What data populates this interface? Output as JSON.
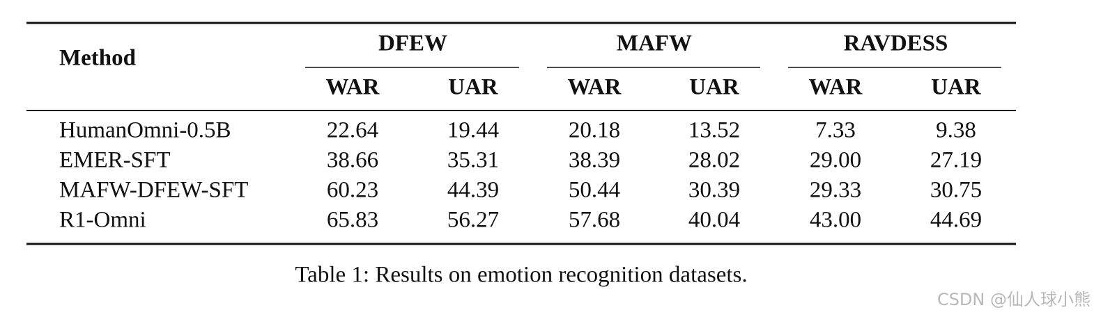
{
  "table": {
    "header": {
      "method": "Method",
      "groups": [
        "DFEW",
        "MAFW",
        "RAVDESS"
      ],
      "metrics": [
        "WAR",
        "UAR",
        "WAR",
        "UAR",
        "WAR",
        "UAR"
      ]
    },
    "rows": [
      [
        "HumanOmni-0.5B",
        "22.64",
        "19.44",
        "20.18",
        "13.52",
        "7.33",
        "9.38"
      ],
      [
        "EMER-SFT",
        "38.66",
        "35.31",
        "38.39",
        "28.02",
        "29.00",
        "27.19"
      ],
      [
        "MAFW-DFEW-SFT",
        "60.23",
        "44.39",
        "50.44",
        "30.39",
        "29.33",
        "30.75"
      ],
      [
        "R1-Omni",
        "65.83",
        "56.27",
        "57.68",
        "40.04",
        "43.00",
        "44.69"
      ]
    ]
  },
  "caption": "Table 1: Results on emotion recognition datasets.",
  "watermark": "CSDN @仙人球小熊"
}
